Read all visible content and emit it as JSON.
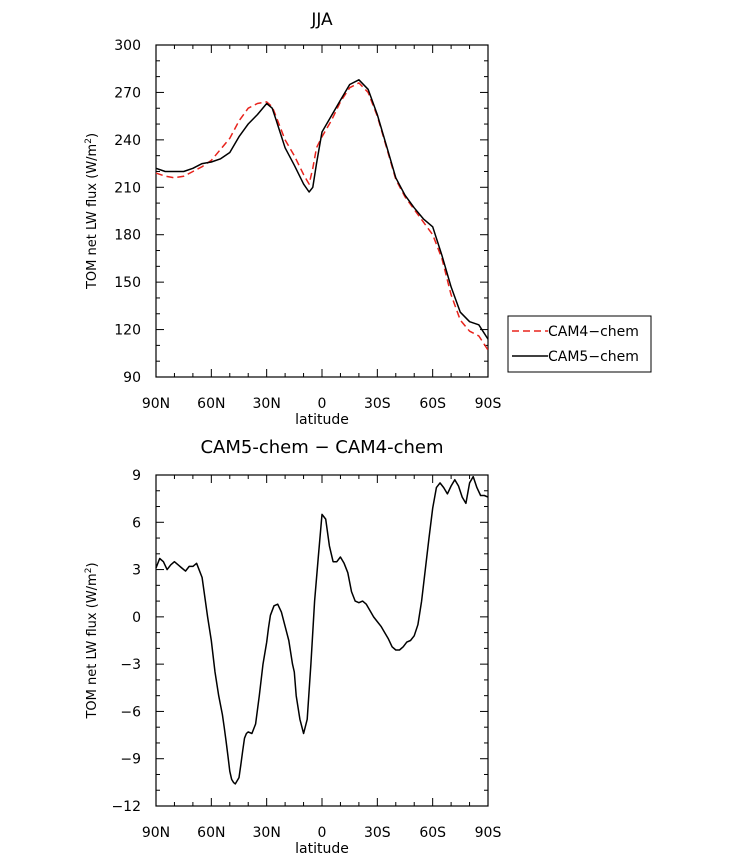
{
  "chart_data": [
    {
      "type": "line",
      "title": "JJA",
      "xlabel": "latitude",
      "ylabel": "TOM net LW flux (W/m",
      "ylabel_sup": "2",
      "ylabel_end": ")",
      "xlim": [
        90,
        -90
      ],
      "ylim": [
        90,
        300
      ],
      "x_ticks": [
        90,
        60,
        30,
        0,
        -30,
        -60,
        -90
      ],
      "x_tick_labels": [
        "90N",
        "60N",
        "30N",
        "0",
        "30S",
        "60S",
        "90S"
      ],
      "y_ticks": [
        90,
        120,
        150,
        180,
        210,
        240,
        270,
        300
      ],
      "y_tick_labels": [
        "90",
        "120",
        "150",
        "180",
        "210",
        "240",
        "270",
        "300"
      ],
      "legend_position": "right",
      "series": [
        {
          "name": "CAM4-chem",
          "color": "#e8231c",
          "dash": "dashed",
          "x": [
            90,
            85,
            80,
            75,
            70,
            65,
            60,
            55,
            50,
            45,
            40,
            35,
            30,
            27,
            25,
            20,
            15,
            10,
            7,
            5,
            3,
            0,
            -5,
            -10,
            -15,
            -20,
            -25,
            -30,
            -35,
            -40,
            -45,
            -50,
            -55,
            -60,
            -65,
            -70,
            -75,
            -80,
            -85,
            -90
          ],
          "y": [
            219,
            217,
            216,
            217,
            220,
            223,
            227,
            234,
            241,
            252,
            260,
            263,
            264,
            261,
            255,
            240,
            230,
            218,
            212,
            222,
            235,
            242,
            252,
            264,
            273,
            276,
            270,
            255,
            235,
            215,
            204,
            196,
            188,
            180,
            165,
            142,
            126,
            119,
            116,
            107
          ]
        },
        {
          "name": "CAM5-chem",
          "color": "#000000",
          "dash": "solid",
          "x": [
            90,
            85,
            80,
            75,
            70,
            65,
            60,
            55,
            50,
            45,
            40,
            35,
            30,
            27,
            25,
            20,
            15,
            10,
            7,
            5,
            3,
            0,
            -5,
            -10,
            -15,
            -20,
            -25,
            -30,
            -35,
            -40,
            -45,
            -50,
            -55,
            -60,
            -65,
            -70,
            -75,
            -80,
            -85,
            -90
          ],
          "y": [
            222,
            220,
            220,
            220,
            222,
            225,
            226,
            228,
            232,
            242,
            250,
            256,
            263,
            260,
            253,
            235,
            224,
            212,
            207,
            210,
            225,
            245,
            255,
            265,
            275,
            278,
            272,
            256,
            236,
            216,
            205,
            197,
            190,
            185,
            167,
            147,
            131,
            125,
            123,
            114
          ]
        }
      ]
    },
    {
      "type": "line",
      "title": "CAM5-chem − CAM4-chem",
      "xlabel": "latitude",
      "ylabel": "TOM net LW flux (W/m",
      "ylabel_sup": "2",
      "ylabel_end": ")",
      "xlim": [
        90,
        -90
      ],
      "ylim": [
        -12,
        9
      ],
      "x_ticks": [
        90,
        60,
        30,
        0,
        -30,
        -60,
        -90
      ],
      "x_tick_labels": [
        "90N",
        "60N",
        "30N",
        "0",
        "30S",
        "60S",
        "90S"
      ],
      "y_ticks": [
        -12,
        -9,
        -6,
        -3,
        0,
        3,
        6,
        9
      ],
      "y_tick_labels": [
        "−12",
        "−9",
        "−6",
        "−3",
        "0",
        "3",
        "6",
        "9"
      ],
      "series": [
        {
          "color": "#000000",
          "dash": "solid",
          "x": [
            90,
            88,
            86,
            84,
            82,
            80,
            78,
            76,
            74,
            72,
            70,
            68,
            65,
            62,
            60,
            58,
            56,
            54,
            53,
            52,
            51,
            50,
            49,
            48,
            47,
            45,
            44,
            43,
            42,
            41,
            40,
            38,
            36,
            34,
            32,
            30,
            29,
            28,
            26,
            24,
            22,
            20,
            18,
            16,
            15,
            14,
            12,
            10,
            8,
            6,
            4,
            2,
            0,
            -2,
            -4,
            -6,
            -8,
            -10,
            -12,
            -14,
            -16,
            -18,
            -20,
            -22,
            -24,
            -26,
            -28,
            -30,
            -32,
            -34,
            -36,
            -38,
            -40,
            -42,
            -44,
            -46,
            -48,
            -50,
            -52,
            -54,
            -56,
            -58,
            -60,
            -62,
            -64,
            -66,
            -68,
            -70,
            -72,
            -74,
            -76,
            -78,
            -80,
            -82,
            -84,
            -86,
            -88,
            -90
          ],
          "y": [
            3.1,
            3.7,
            3.5,
            3.0,
            3.3,
            3.5,
            3.3,
            3.1,
            2.9,
            3.2,
            3.2,
            3.4,
            2.5,
            0.0,
            -1.5,
            -3.5,
            -5.0,
            -6.2,
            -7.0,
            -7.9,
            -8.8,
            -9.8,
            -10.3,
            -10.5,
            -10.6,
            -10.2,
            -9.4,
            -8.5,
            -7.7,
            -7.4,
            -7.3,
            -7.4,
            -6.8,
            -5.0,
            -3.0,
            -1.6,
            -0.7,
            0.1,
            0.7,
            0.8,
            0.3,
            -0.6,
            -1.5,
            -3.0,
            -3.5,
            -5.0,
            -6.5,
            -7.4,
            -6.5,
            -3.0,
            1.0,
            3.8,
            6.5,
            6.2,
            4.5,
            3.5,
            3.5,
            3.8,
            3.4,
            2.8,
            1.6,
            1.0,
            0.9,
            1.0,
            0.8,
            0.4,
            0.0,
            -0.3,
            -0.6,
            -1.0,
            -1.4,
            -1.9,
            -2.1,
            -2.1,
            -1.9,
            -1.6,
            -1.5,
            -1.2,
            -0.5,
            1.0,
            3.0,
            5.0,
            6.9,
            8.2,
            8.5,
            8.2,
            7.8,
            8.3,
            8.7,
            8.3,
            7.6,
            7.2,
            8.5,
            8.9,
            8.2,
            7.7,
            7.7,
            7.6
          ]
        }
      ]
    }
  ],
  "legend": {
    "items": [
      {
        "label": "CAM4−chem",
        "color": "#e8231c",
        "dash": "dashed"
      },
      {
        "label": "CAM5−chem",
        "color": "#000000",
        "dash": "solid"
      }
    ]
  }
}
